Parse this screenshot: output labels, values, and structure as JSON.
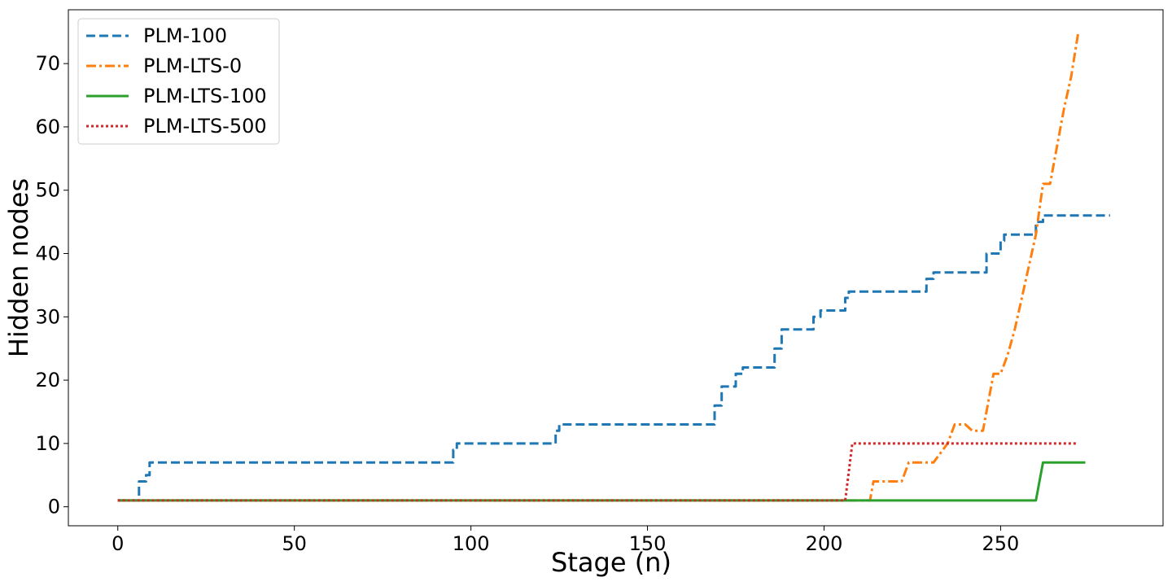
{
  "chart_data": {
    "type": "line",
    "xlabel": "Stage (n)",
    "ylabel": "Hidden nodes",
    "xlim": [
      -14,
      296
    ],
    "ylim": [
      -3,
      78.5
    ],
    "xticks": [
      0,
      50,
      100,
      150,
      200,
      250
    ],
    "yticks": [
      0,
      10,
      20,
      30,
      40,
      50,
      60,
      70
    ],
    "grid": false,
    "legend_position": "top-left",
    "series": [
      {
        "name": "PLM-100",
        "color": "#1f77b4",
        "style": "dashed",
        "x": [
          0,
          6,
          6,
          8,
          8,
          9,
          9,
          95,
          95,
          96,
          96,
          124,
          124,
          125,
          125,
          169,
          169,
          171,
          171,
          175,
          175,
          177,
          177,
          186,
          186,
          188,
          188,
          197,
          197,
          199,
          199,
          206,
          206,
          207,
          207,
          229,
          229,
          231,
          231,
          246,
          246,
          248,
          248,
          250,
          250,
          251,
          251,
          260,
          260,
          262,
          262,
          281
        ],
        "y": [
          1,
          1,
          4,
          4,
          5,
          5,
          7,
          7,
          9,
          9,
          10,
          10,
          12,
          12,
          13,
          13,
          16,
          16,
          19,
          19,
          21,
          21,
          22,
          22,
          25,
          25,
          28,
          28,
          30,
          30,
          31,
          31,
          33,
          33,
          34,
          34,
          36,
          36,
          37,
          37,
          40,
          40,
          40,
          40,
          42,
          42,
          43,
          43,
          45,
          45,
          46,
          46
        ]
      },
      {
        "name": "PLM-LTS-0",
        "color": "#ff7f0e",
        "style": "dashdot",
        "x": [
          0,
          213,
          214,
          222,
          224,
          231,
          235,
          237,
          240,
          242,
          245,
          248,
          250,
          252,
          254,
          256,
          258,
          260,
          262,
          264,
          266,
          268,
          270,
          272
        ],
        "y": [
          1,
          1,
          4,
          4,
          7,
          7,
          10,
          13,
          13,
          12,
          12,
          21,
          21,
          24,
          28,
          33,
          38,
          43,
          51,
          51,
          57,
          63,
          68,
          75
        ]
      },
      {
        "name": "PLM-LTS-100",
        "color": "#2ca02c",
        "style": "solid",
        "x": [
          0,
          260,
          262,
          274
        ],
        "y": [
          1,
          1,
          7,
          7
        ]
      },
      {
        "name": "PLM-LTS-500",
        "color": "#d62728",
        "style": "dotted",
        "x": [
          0,
          206,
          208,
          272
        ],
        "y": [
          1,
          1,
          10,
          10
        ]
      }
    ]
  }
}
